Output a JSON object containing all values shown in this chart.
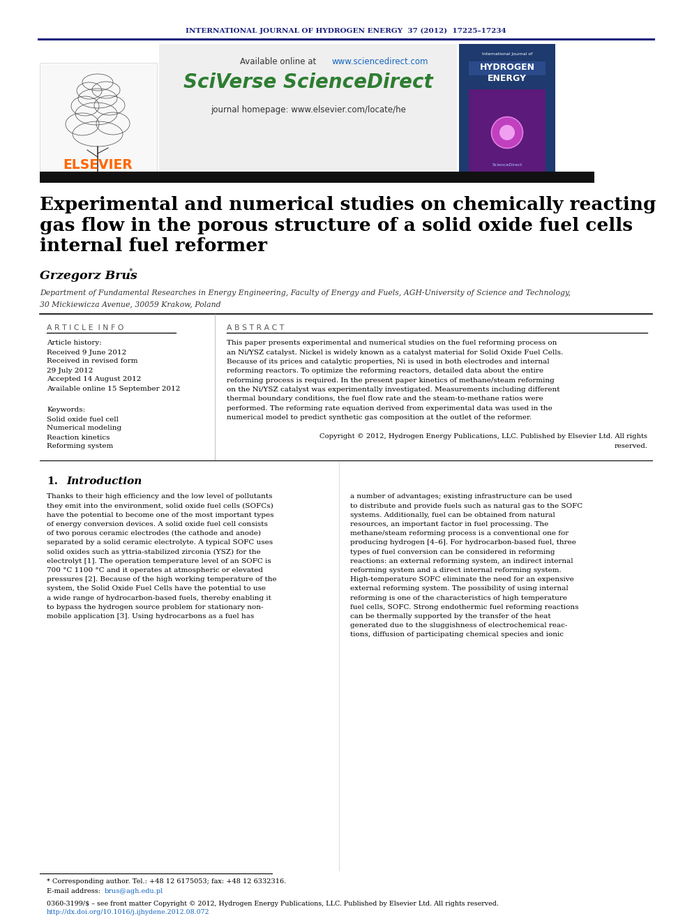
{
  "journal_header": "INTERNATIONAL JOURNAL OF HYDROGEN ENERGY  37 (2012)  17225–17234",
  "available_online": "Available online at ",
  "url_sciencedirect": "www.sciencedirect.com",
  "sciverse_text": "SciVerse ScienceDirect",
  "journal_homepage": "journal homepage: www.elsevier.com/locate/he",
  "title_line1": "Experimental and numerical studies on chemically reacting",
  "title_line2": "gas flow in the porous structure of a solid oxide fuel cells",
  "title_line3": "internal fuel reformer",
  "author": "Grzegorz Brus",
  "author_superscript": "*",
  "affiliation": "Department of Fundamental Researches in Energy Engineering, Faculty of Energy and Fuels, AGH-University of Science and Technology,",
  "affiliation2": "30 Mickiewicza Avenue, 30059 Krakow, Poland",
  "article_info_header": "A R T I C L E  I N F O",
  "abstract_header": "A B S T R A C T",
  "article_history_label": "Article history:",
  "received1": "Received 9 June 2012",
  "revised": "Received in revised form",
  "date_revised": "29 July 2012",
  "accepted": "Accepted 14 August 2012",
  "available": "Available online 15 September 2012",
  "keywords_label": "Keywords:",
  "kw1": "Solid oxide fuel cell",
  "kw2": "Numerical modeling",
  "kw3": "Reaction kinetics",
  "kw4": "Reforming system",
  "copyright_text": "Copyright © 2012, Hydrogen Energy Publications, LLC. Published by Elsevier Ltd. All rights",
  "copyright_text2": "reserved.",
  "section1_num": "1.",
  "section1_title": "Introduction",
  "footnote_star": "* Corresponding author. Tel.: +48 12 6175053; fax: +48 12 6332316.",
  "footnote_email_label": "E-mail address: ",
  "footnote_email": "brus@agh.edu.pl",
  "footer_issn": "0360-3199/$ – see front matter Copyright © 2012, Hydrogen Energy Publications, LLC. Published by Elsevier Ltd. All rights reserved.",
  "footer_doi": "http://dx.doi.org/10.1016/j.ijhydene.2012.08.072",
  "elsevier_color": "#FF6600",
  "journal_header_color": "#1a237e",
  "sciverse_color": "#2e7d32",
  "url_color": "#1565c0",
  "background_color": "#ffffff",
  "bg_center_color": "#efefef",
  "abstract_lines": [
    "This paper presents experimental and numerical studies on the fuel reforming process on",
    "an Ni/YSZ catalyst. Nickel is widely known as a catalyst material for Solid Oxide Fuel Cells.",
    "Because of its prices and catalytic properties, Ni is used in both electrodes and internal",
    "reforming reactors. To optimize the reforming reactors, detailed data about the entire",
    "reforming process is required. In the present paper kinetics of methane/steam reforming",
    "on the Ni/YSZ catalyst was experimentally investigated. Measurements including different",
    "thermal boundary conditions, the fuel flow rate and the steam-to-methane ratios were",
    "performed. The reforming rate equation derived from experimental data was used in the",
    "numerical model to predict synthetic gas composition at the outlet of the reformer."
  ],
  "left_col_lines": [
    "Thanks to their high efficiency and the low level of pollutants",
    "they emit into the environment, solid oxide fuel cells (SOFCs)",
    "have the potential to become one of the most important types",
    "of energy conversion devices. A solid oxide fuel cell consists",
    "of two porous ceramic electrodes (the cathode and anode)",
    "separated by a solid ceramic electrolyte. A typical SOFC uses",
    "solid oxides such as yttria-stabilized zirconia (YSZ) for the",
    "electrolyt [1]. The operation temperature level of an SOFC is",
    "700 °C 1100 °C and it operates at atmospheric or elevated",
    "pressures [2]. Because of the high working temperature of the",
    "system, the Solid Oxide Fuel Cells have the potential to use",
    "a wide range of hydrocarbon-based fuels, thereby enabling it",
    "to bypass the hydrogen source problem for stationary non-",
    "mobile application [3]. Using hydrocarbons as a fuel has"
  ],
  "right_col_lines": [
    "a number of advantages; existing infrastructure can be used",
    "to distribute and provide fuels such as natural gas to the SOFC",
    "systems. Additionally, fuel can be obtained from natural",
    "resources, an important factor in fuel processing. The",
    "methane/steam reforming process is a conventional one for",
    "producing hydrogen [4–6]. For hydrocarbon-based fuel, three",
    "types of fuel conversion can be considered in reforming",
    "reactions: an external reforming system, an indirect internal",
    "reforming system and a direct internal reforming system.",
    "High-temperature SOFC eliminate the need for an expensive",
    "external reforming system. The possibility of using internal",
    "reforming is one of the characteristics of high temperature",
    "fuel cells, SOFC. Strong endothermic fuel reforming reactions",
    "can be thermally supported by the transfer of the heat",
    "generated due to the sluggishness of electrochemical reac-",
    "tions, diffusion of participating chemical species and ionic"
  ]
}
